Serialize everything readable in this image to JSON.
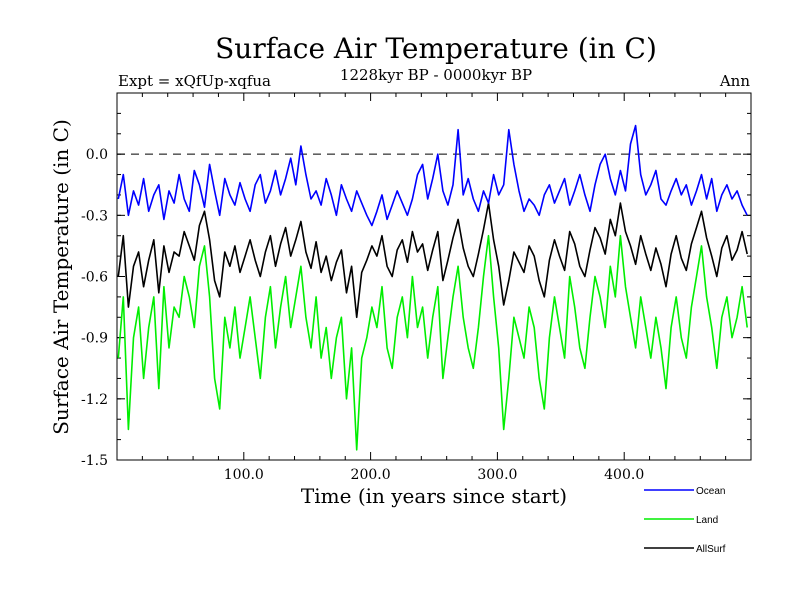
{
  "chart_data": {
    "type": "line",
    "title": "Surface Air Temperature (in C)",
    "subtitle_left": "Expt = xQfUp-xqfua",
    "subtitle_center": "1228kyr BP - 0000kyr BP",
    "subtitle_right": "Ann",
    "xlabel": "Time (in years since start)",
    "ylabel": "Surface Air Temperature (in C)",
    "xlim": [
      0,
      500
    ],
    "ylim": [
      -1.5,
      0.3
    ],
    "x_ticks": [
      100,
      200,
      300,
      400
    ],
    "x_tick_labels": [
      "100.0",
      "200.0",
      "300.0",
      "400.0"
    ],
    "y_ticks": [
      -1.5,
      -1.2,
      -0.9,
      -0.6,
      -0.3,
      0.0
    ],
    "y_tick_labels": [
      "-1.5",
      "-1.2",
      "-0.9",
      "-0.6",
      "-0.3",
      "0.0"
    ],
    "reference_line": 0.0,
    "x": {
      "start": 1,
      "end": 499,
      "step": 4
    },
    "series": [
      {
        "name": "Ocean",
        "color": "#0000ff",
        "values": [
          -0.22,
          -0.1,
          -0.3,
          -0.18,
          -0.25,
          -0.12,
          -0.28,
          -0.2,
          -0.15,
          -0.32,
          -0.18,
          -0.24,
          -0.1,
          -0.22,
          -0.28,
          -0.08,
          -0.15,
          -0.26,
          -0.05,
          -0.18,
          -0.3,
          -0.12,
          -0.2,
          -0.25,
          -0.14,
          -0.22,
          -0.28,
          -0.15,
          -0.1,
          -0.24,
          -0.18,
          -0.08,
          -0.2,
          -0.12,
          -0.02,
          -0.15,
          0.04,
          -0.1,
          -0.22,
          -0.18,
          -0.25,
          -0.12,
          -0.2,
          -0.3,
          -0.15,
          -0.22,
          -0.28,
          -0.18,
          -0.24,
          -0.3,
          -0.35,
          -0.28,
          -0.2,
          -0.32,
          -0.25,
          -0.18,
          -0.24,
          -0.3,
          -0.22,
          -0.1,
          -0.05,
          -0.22,
          -0.12,
          0.0,
          -0.18,
          -0.25,
          -0.15,
          0.12,
          -0.2,
          -0.12,
          -0.22,
          -0.28,
          -0.18,
          -0.24,
          -0.1,
          -0.2,
          -0.15,
          0.12,
          -0.05,
          -0.18,
          -0.28,
          -0.22,
          -0.25,
          -0.3,
          -0.2,
          -0.15,
          -0.24,
          -0.18,
          -0.12,
          -0.25,
          -0.18,
          -0.1,
          -0.2,
          -0.28,
          -0.15,
          -0.05,
          0.0,
          -0.12,
          -0.2,
          -0.08,
          -0.18,
          0.05,
          0.14,
          -0.1,
          -0.2,
          -0.15,
          -0.08,
          -0.22,
          -0.25,
          -0.18,
          -0.12,
          -0.2,
          -0.15,
          -0.25,
          -0.18,
          -0.1,
          -0.22,
          -0.12,
          -0.28,
          -0.2,
          -0.15,
          -0.22,
          -0.18,
          -0.25,
          -0.3
        ]
      },
      {
        "name": "Land",
        "color": "#00ee00",
        "values": [
          -1.0,
          -0.7,
          -1.35,
          -0.9,
          -0.75,
          -1.1,
          -0.85,
          -0.7,
          -1.15,
          -0.65,
          -0.95,
          -0.75,
          -0.8,
          -0.6,
          -0.7,
          -0.85,
          -0.55,
          -0.45,
          -0.7,
          -1.1,
          -1.25,
          -0.8,
          -0.95,
          -0.75,
          -1.0,
          -0.85,
          -0.7,
          -0.9,
          -1.1,
          -0.8,
          -0.65,
          -0.95,
          -0.75,
          -0.6,
          -0.85,
          -0.7,
          -0.55,
          -0.8,
          -0.95,
          -0.7,
          -1.0,
          -0.85,
          -1.1,
          -0.9,
          -0.8,
          -1.2,
          -0.95,
          -1.45,
          -1.0,
          -0.9,
          -0.75,
          -0.85,
          -0.65,
          -0.95,
          -1.05,
          -0.8,
          -0.7,
          -0.9,
          -0.6,
          -0.85,
          -0.75,
          -1.0,
          -0.8,
          -0.65,
          -1.1,
          -0.9,
          -0.7,
          -0.55,
          -0.8,
          -0.95,
          -1.05,
          -0.85,
          -0.6,
          -0.4,
          -0.7,
          -0.95,
          -1.35,
          -1.1,
          -0.8,
          -0.9,
          -1.0,
          -0.75,
          -0.85,
          -1.1,
          -1.25,
          -0.9,
          -0.7,
          -0.85,
          -1.0,
          -0.6,
          -0.75,
          -0.95,
          -1.05,
          -0.8,
          -0.6,
          -0.7,
          -0.85,
          -0.55,
          -0.7,
          -0.4,
          -0.65,
          -0.8,
          -0.95,
          -0.7,
          -0.85,
          -1.0,
          -0.8,
          -0.95,
          -1.15,
          -0.85,
          -0.7,
          -0.9,
          -1.0,
          -0.75,
          -0.6,
          -0.45,
          -0.7,
          -0.85,
          -1.05,
          -0.8,
          -0.7,
          -0.9,
          -0.8,
          -0.65,
          -0.85
        ]
      },
      {
        "name": "AllSurf",
        "color": "#000000",
        "values": [
          -0.6,
          -0.4,
          -0.75,
          -0.55,
          -0.48,
          -0.65,
          -0.52,
          -0.42,
          -0.68,
          -0.45,
          -0.58,
          -0.48,
          -0.5,
          -0.38,
          -0.45,
          -0.52,
          -0.35,
          -0.28,
          -0.42,
          -0.62,
          -0.7,
          -0.48,
          -0.55,
          -0.45,
          -0.58,
          -0.5,
          -0.42,
          -0.52,
          -0.6,
          -0.48,
          -0.4,
          -0.55,
          -0.44,
          -0.36,
          -0.5,
          -0.42,
          -0.33,
          -0.48,
          -0.56,
          -0.43,
          -0.58,
          -0.5,
          -0.62,
          -0.53,
          -0.47,
          -0.68,
          -0.55,
          -0.8,
          -0.58,
          -0.52,
          -0.45,
          -0.5,
          -0.4,
          -0.55,
          -0.6,
          -0.47,
          -0.42,
          -0.53,
          -0.38,
          -0.48,
          -0.44,
          -0.57,
          -0.47,
          -0.38,
          -0.62,
          -0.52,
          -0.41,
          -0.32,
          -0.46,
          -0.55,
          -0.6,
          -0.49,
          -0.37,
          -0.24,
          -0.42,
          -0.55,
          -0.74,
          -0.62,
          -0.48,
          -0.53,
          -0.58,
          -0.45,
          -0.5,
          -0.62,
          -0.7,
          -0.52,
          -0.42,
          -0.5,
          -0.57,
          -0.38,
          -0.44,
          -0.55,
          -0.6,
          -0.47,
          -0.36,
          -0.41,
          -0.49,
          -0.32,
          -0.4,
          -0.24,
          -0.38,
          -0.45,
          -0.54,
          -0.4,
          -0.49,
          -0.57,
          -0.46,
          -0.54,
          -0.65,
          -0.49,
          -0.4,
          -0.51,
          -0.57,
          -0.44,
          -0.36,
          -0.28,
          -0.41,
          -0.5,
          -0.6,
          -0.46,
          -0.4,
          -0.52,
          -0.47,
          -0.38,
          -0.49
        ]
      }
    ],
    "legend_position": "bottom-right"
  }
}
